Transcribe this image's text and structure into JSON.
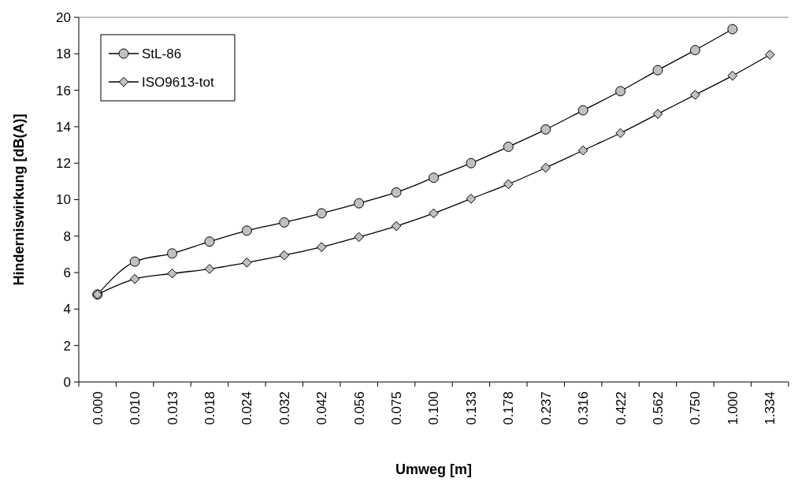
{
  "chart_data": {
    "type": "line",
    "xlabel": "Umweg [m]",
    "ylabel": "Hinderniswirkung [dB(A)]",
    "categories": [
      "0.000",
      "0.010",
      "0.013",
      "0.018",
      "0.024",
      "0.032",
      "0.042",
      "0.056",
      "0.075",
      "0.100",
      "0.133",
      "0.178",
      "0.237",
      "0.316",
      "0.422",
      "0.562",
      "0.750",
      "1.000",
      "1.334"
    ],
    "series": [
      {
        "name": "StL-86",
        "color": "#000000",
        "marker": "circle",
        "values": [
          4.8,
          6.6,
          7.05,
          7.7,
          8.3,
          8.75,
          9.25,
          9.8,
          10.4,
          11.2,
          12.0,
          12.9,
          13.85,
          14.9,
          15.95,
          17.1,
          18.2,
          19.35,
          null
        ]
      },
      {
        "name": "ISO9613-tot",
        "color": "#000000",
        "marker": "diamond",
        "values": [
          4.8,
          5.65,
          5.95,
          6.2,
          6.55,
          6.95,
          7.4,
          7.95,
          8.55,
          9.25,
          10.05,
          10.85,
          11.75,
          12.7,
          13.65,
          14.7,
          15.75,
          16.8,
          17.95
        ]
      }
    ],
    "ylim": [
      0,
      20
    ],
    "yticks": [
      0,
      2,
      4,
      6,
      8,
      10,
      12,
      14,
      16,
      18,
      20
    ],
    "grid": false,
    "legend": "top left",
    "line_style": "solid"
  }
}
